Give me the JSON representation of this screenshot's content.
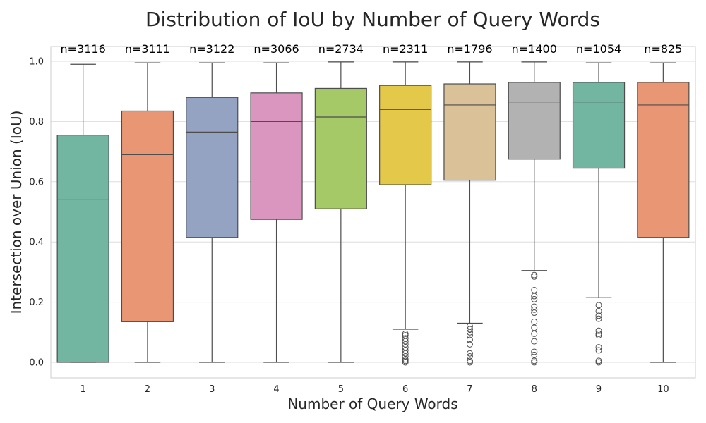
{
  "chart_data": {
    "type": "box",
    "title": "Distribution of IoU by Number of Query Words",
    "xlabel": "Number of Query Words",
    "ylabel": "Intersection over Union (IoU)",
    "ylim": [
      -0.05,
      1.05
    ],
    "yticks": [
      "0.0",
      "0.2",
      "0.4",
      "0.6",
      "0.8",
      "1.0"
    ],
    "grid": true,
    "categories": [
      "1",
      "2",
      "3",
      "4",
      "5",
      "6",
      "7",
      "8",
      "9",
      "10"
    ],
    "colors": [
      "#72b6a1",
      "#e99675",
      "#95a3c3",
      "#db96c0",
      "#a4c966",
      "#e4c84a",
      "#dac198",
      "#b2b2b2",
      "#72b6a1",
      "#e99675"
    ],
    "boxes": [
      {
        "category": "1",
        "n_label": "n=3116",
        "whisker_low": 0.0,
        "q1": 0.0,
        "median": 0.54,
        "q3": 0.755,
        "whisker_high": 0.99,
        "outliers": []
      },
      {
        "category": "2",
        "n_label": "n=3111",
        "whisker_low": 0.0,
        "q1": 0.135,
        "median": 0.69,
        "q3": 0.835,
        "whisker_high": 0.995,
        "outliers": []
      },
      {
        "category": "3",
        "n_label": "n=3122",
        "whisker_low": 0.0,
        "q1": 0.415,
        "median": 0.765,
        "q3": 0.88,
        "whisker_high": 0.995,
        "outliers": []
      },
      {
        "category": "4",
        "n_label": "n=3066",
        "whisker_low": 0.0,
        "q1": 0.475,
        "median": 0.8,
        "q3": 0.895,
        "whisker_high": 0.995,
        "outliers": []
      },
      {
        "category": "5",
        "n_label": "n=2734",
        "whisker_low": 0.0,
        "q1": 0.51,
        "median": 0.815,
        "q3": 0.91,
        "whisker_high": 0.998,
        "outliers": []
      },
      {
        "category": "6",
        "n_label": "n=2311",
        "whisker_low": 0.11,
        "q1": 0.59,
        "median": 0.84,
        "q3": 0.92,
        "whisker_high": 0.998,
        "outliers": [
          0.095,
          0.09,
          0.08,
          0.07,
          0.06,
          0.05,
          0.04,
          0.03,
          0.02,
          0.01,
          0.005,
          0.0
        ]
      },
      {
        "category": "7",
        "n_label": "n=1796",
        "whisker_low": 0.13,
        "q1": 0.605,
        "median": 0.855,
        "q3": 0.925,
        "whisker_high": 0.998,
        "outliers": [
          0.12,
          0.11,
          0.1,
          0.09,
          0.075,
          0.06,
          0.03,
          0.02,
          0.005,
          0.0
        ]
      },
      {
        "category": "8",
        "n_label": "n=1400",
        "whisker_low": 0.305,
        "q1": 0.675,
        "median": 0.865,
        "q3": 0.93,
        "whisker_high": 0.998,
        "outliers": [
          0.29,
          0.285,
          0.24,
          0.22,
          0.21,
          0.185,
          0.175,
          0.165,
          0.135,
          0.115,
          0.095,
          0.07,
          0.035,
          0.025,
          0.005,
          0.0
        ]
      },
      {
        "category": "9",
        "n_label": "n=1054",
        "whisker_low": 0.215,
        "q1": 0.645,
        "median": 0.865,
        "q3": 0.93,
        "whisker_high": 0.995,
        "outliers": [
          0.19,
          0.17,
          0.155,
          0.145,
          0.105,
          0.095,
          0.09,
          0.05,
          0.04,
          0.005,
          0.0
        ]
      },
      {
        "category": "10",
        "n_label": "n=825",
        "whisker_low": 0.0,
        "q1": 0.415,
        "median": 0.855,
        "q3": 0.93,
        "whisker_high": 0.995,
        "outliers": []
      }
    ]
  }
}
